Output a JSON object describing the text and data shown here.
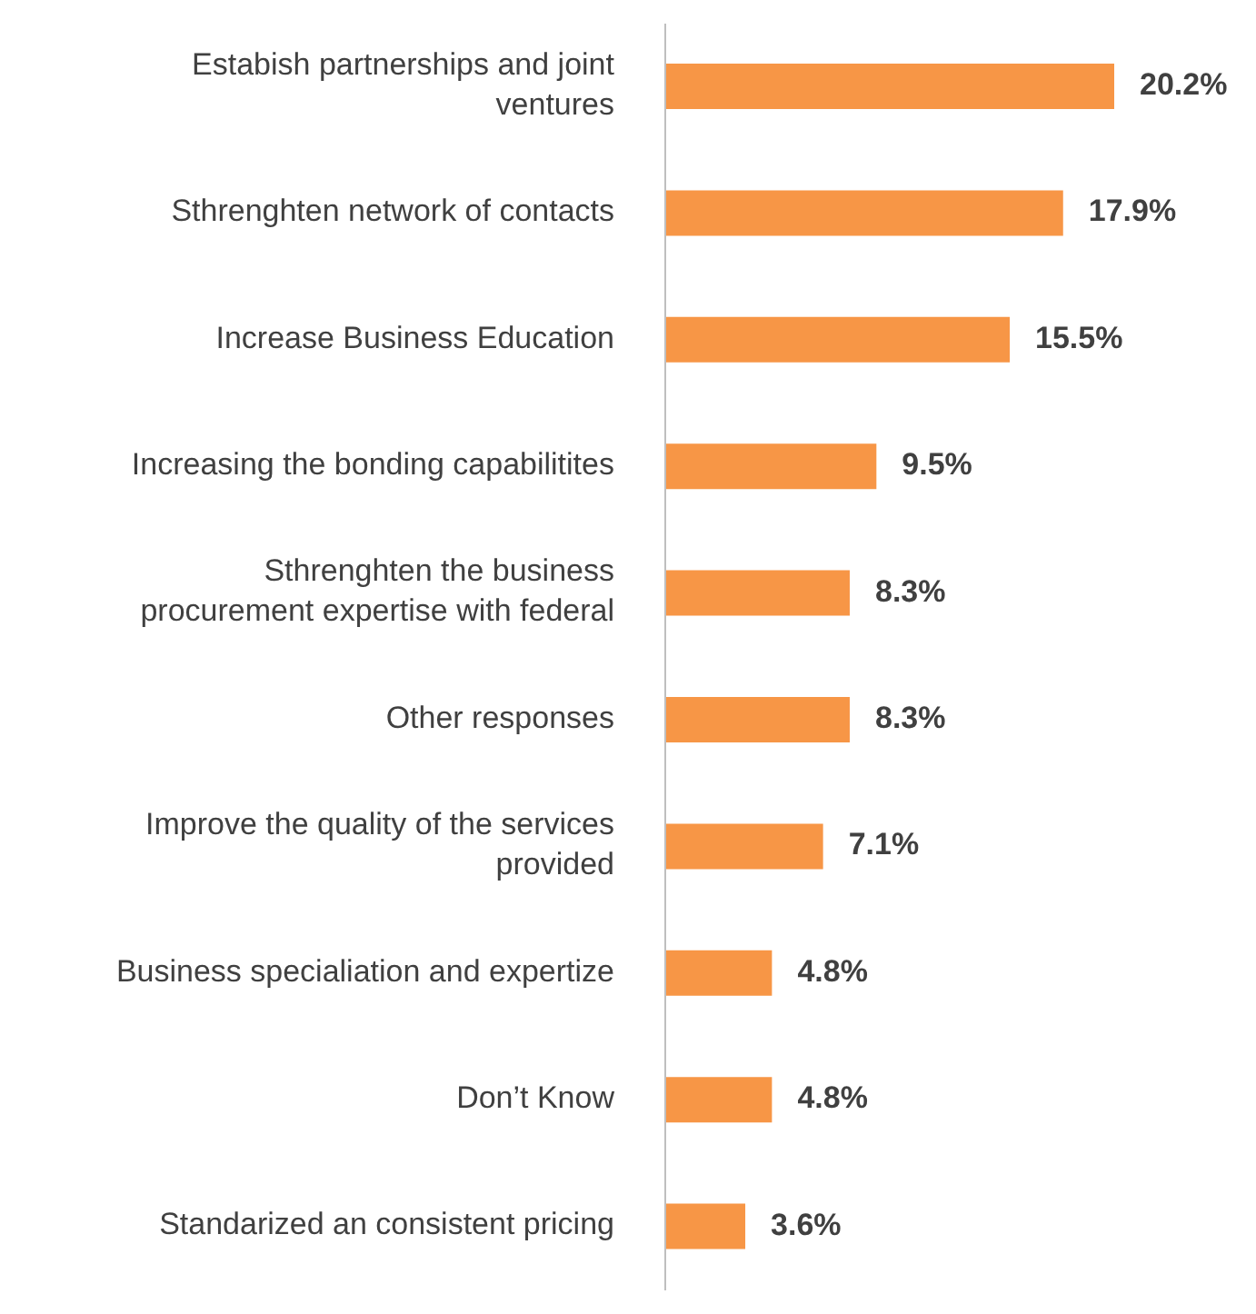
{
  "chart_data": {
    "type": "bar",
    "orientation": "horizontal",
    "categories": [
      "Estabish partnerships and joint ventures",
      "Sthrenghten network of contacts",
      "Increase Business Education",
      "Increasing the bonding capabilitites",
      "Sthrenghten the business procurement expertise with federal",
      "Other responses",
      "Improve the quality of the services provided",
      "Business specialiation and expertize",
      "Don’t Know",
      "Standarized an consistent pricing"
    ],
    "values": [
      20.2,
      17.9,
      15.5,
      9.5,
      8.3,
      8.3,
      7.1,
      4.8,
      4.8,
      3.6
    ],
    "value_labels": [
      "20.2%",
      "17.9%",
      "15.5%",
      "9.5%",
      "8.3%",
      "8.3%",
      "7.1%",
      "4.8%",
      "4.8%",
      "3.6%"
    ],
    "color": "#f79646"
  }
}
